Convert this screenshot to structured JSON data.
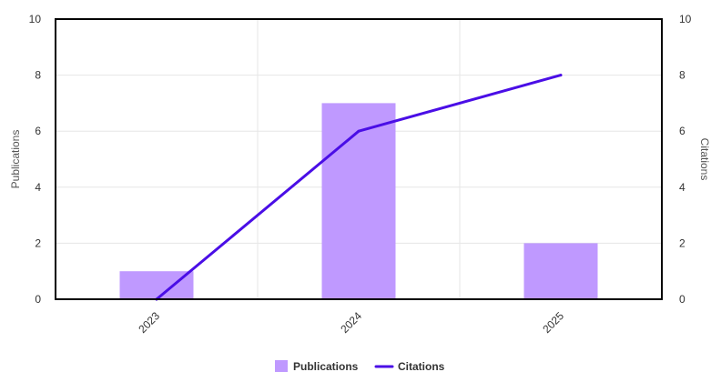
{
  "chart_data": {
    "type": "bar",
    "categories": [
      "2023",
      "2024",
      "2025"
    ],
    "series": [
      {
        "name": "Publications",
        "type": "bar",
        "axis": "left",
        "values": [
          1,
          7,
          2
        ],
        "color": "#bf99ff"
      },
      {
        "name": "Citations",
        "type": "line",
        "axis": "right",
        "values": [
          0,
          6,
          8
        ],
        "color": "#4a0ee6"
      }
    ],
    "ylabel": "Publications",
    "y2label": "Citations",
    "ylim": [
      0,
      10
    ],
    "y2lim": [
      0,
      10
    ],
    "yticks": [
      "0",
      "2",
      "4",
      "6",
      "8",
      "10"
    ],
    "y2ticks": [
      "0",
      "2",
      "4",
      "6",
      "8",
      "10"
    ],
    "grid": true,
    "legend": {
      "position": "bottom",
      "items": [
        {
          "label": "Publications",
          "marker": "square",
          "color": "#bf99ff"
        },
        {
          "label": "Citations",
          "marker": "line",
          "color": "#4a0ee6"
        }
      ]
    }
  }
}
